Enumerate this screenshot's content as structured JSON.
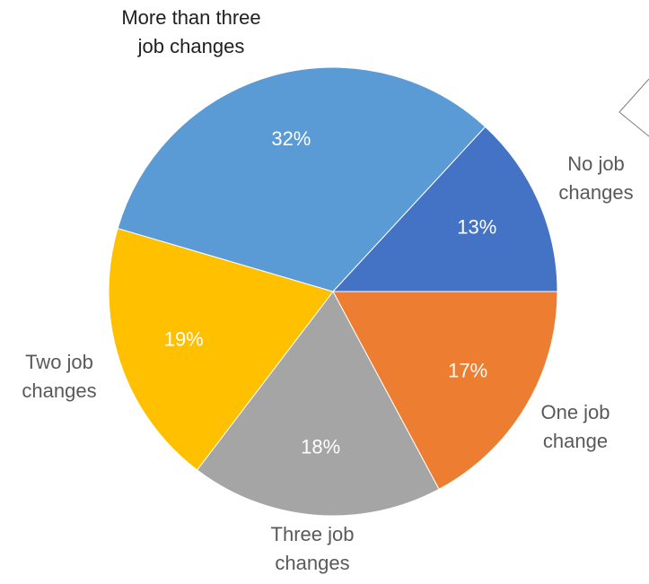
{
  "chart_data": {
    "type": "pie",
    "start_angle_deg": 0,
    "direction": "clockwise-from-right",
    "slices": [
      {
        "label_lines": [
          "One job",
          "change"
        ],
        "value": 17,
        "label": "17%",
        "color": "#ED7D31"
      },
      {
        "label_lines": [
          "Three job",
          "changes"
        ],
        "value": 18,
        "label": "18%",
        "color": "#A5A5A5"
      },
      {
        "label_lines": [
          "Two job",
          "changes"
        ],
        "value": 19,
        "label": "19%",
        "color": "#FFC000"
      },
      {
        "label_lines": [
          "More than three",
          "job changes"
        ],
        "value": 32,
        "label": "32%",
        "color": "#5B9BD5"
      },
      {
        "label_lines": [
          "No job",
          "changes"
        ],
        "value": 13,
        "label": "13%",
        "color": "#4472C4"
      }
    ]
  }
}
